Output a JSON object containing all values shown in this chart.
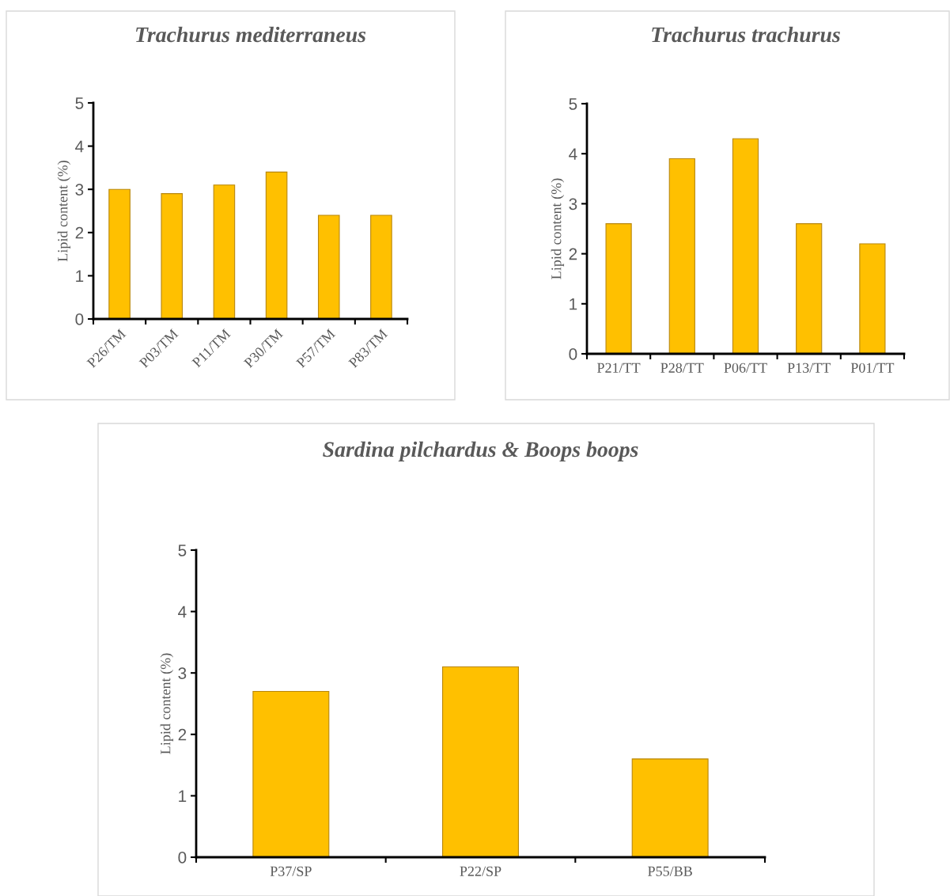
{
  "chart_data": [
    {
      "type": "bar",
      "title": "Trachurus mediterraneus",
      "ylabel": "Lipid content (%)",
      "categories": [
        "P26/TM",
        "P03/TM",
        "P11/TM",
        "P30/TM",
        "P57/TM",
        "P83/TM"
      ],
      "values": [
        3.0,
        2.9,
        3.1,
        3.4,
        2.4,
        2.4
      ],
      "color": "#ffc000",
      "ylim": [
        0,
        5
      ],
      "yticks": [
        0,
        1,
        2,
        3,
        4,
        5
      ],
      "grid": false,
      "legend": false
    },
    {
      "type": "bar",
      "title": "Trachurus trachurus",
      "ylabel": "Lipid content (%)",
      "categories": [
        "P21/TT",
        "P28/TT",
        "P06/TT",
        "P13/TT",
        "P01/TT"
      ],
      "values": [
        2.6,
        3.9,
        4.3,
        2.6,
        2.2
      ],
      "color": "#ffc000",
      "ylim": [
        0,
        5
      ],
      "yticks": [
        0,
        1,
        2,
        3,
        4,
        5
      ],
      "grid": false,
      "legend": false
    },
    {
      "type": "bar",
      "title": "Sardina pilchardus & Boops boops",
      "ylabel": "Lipid content (%)",
      "categories": [
        "P37/SP",
        "P22/SP",
        "P55/BB"
      ],
      "values": [
        2.7,
        3.1,
        1.6
      ],
      "color": "#ffc000",
      "ylim": [
        0,
        5
      ],
      "yticks": [
        0,
        1,
        2,
        3,
        4,
        5
      ],
      "grid": false,
      "legend": false
    }
  ]
}
